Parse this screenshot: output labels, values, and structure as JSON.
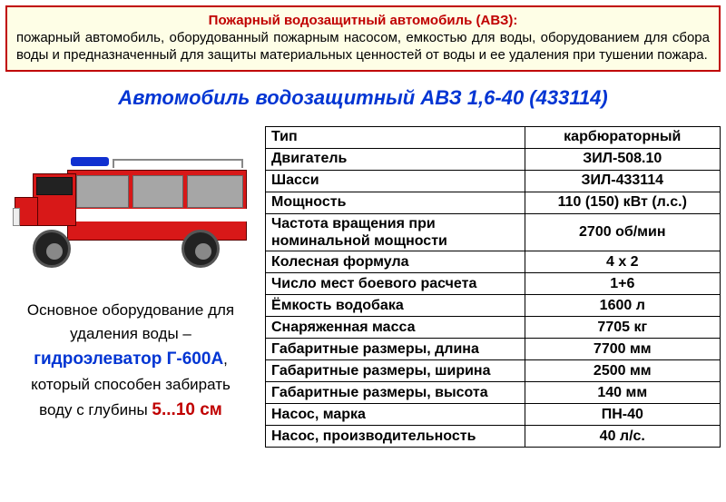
{
  "definition": {
    "title": "Пожарный водозащитный автомобиль (АВЗ):",
    "text": "пожарный автомобиль, оборудованный пожарным насосом, емкостью для воды, оборудованием для сбора воды и предназначенный для защиты материальных ценностей от воды и ее удаления при тушении пожара."
  },
  "main_title": "Автомобиль водозащитный АВЗ 1,6-40 (433114)",
  "equipment_caption": {
    "line1": "Основное оборудование для",
    "line2": "удаления воды –",
    "name": "гидроэлеватор Г-600А",
    "comma": ",",
    "line4": "который способен  забирать",
    "line5a": "воду с глубины ",
    "depth": "5...10 см"
  },
  "specs": {
    "rows": [
      {
        "label": "Тип",
        "value": "карбюраторный"
      },
      {
        "label": "Двигатель",
        "value": "ЗИЛ-508.10"
      },
      {
        "label": "Шасси",
        "value": "ЗИЛ-433114"
      },
      {
        "label": "Мощность",
        "value": "110 (150) кВт (л.с.)"
      },
      {
        "label": "Частота вращения при номинальной мощности",
        "value": "2700 об/мин"
      },
      {
        "label": "Колесная формула",
        "value": "4 х 2"
      },
      {
        "label": "Число мест боевого расчета",
        "value": "1+6"
      },
      {
        "label": "Ёмкость водобака",
        "value": "1600 л"
      },
      {
        "label": "Снаряженная масса",
        "value": "7705 кг"
      },
      {
        "label": "Габаритные размеры, длина",
        "value": "7700 мм"
      },
      {
        "label": "Габаритные размеры, ширина",
        "value": "2500 мм"
      },
      {
        "label": "Габаритные размеры, высота",
        "value": "140 мм"
      },
      {
        "label": "Насос, марка",
        "value": "ПН-40"
      },
      {
        "label": "Насос, производительность",
        "value": "40 л/с."
      }
    ]
  },
  "colors": {
    "accent_red": "#c00000",
    "accent_blue": "#0235d3",
    "box_bg": "#fefee6",
    "truck_red": "#d81818"
  }
}
